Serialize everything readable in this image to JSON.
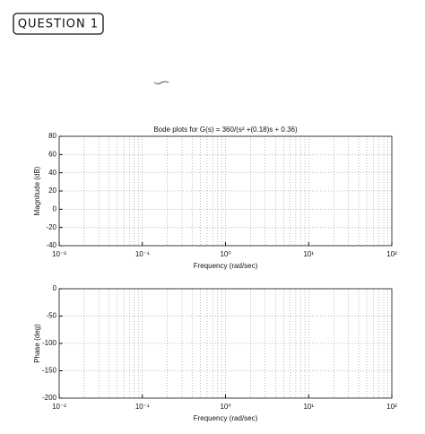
{
  "header": "QUESTION 1",
  "chart_data": [
    {
      "type": "line",
      "title": "Bode plots for G(s) = 360/(s² +(0.18)s + 0.36)",
      "x_label": "Frequency (rad/sec)",
      "y_label": "Magnitude (dB)",
      "xscale": "log",
      "grid": true,
      "xlim": [
        0.01,
        100
      ],
      "xticks": [
        {
          "value": 0.01,
          "label": "10⁻²"
        },
        {
          "value": 0.1,
          "label": "10⁻¹"
        },
        {
          "value": 1,
          "label": "10⁰"
        },
        {
          "value": 10,
          "label": "10¹"
        },
        {
          "value": 100,
          "label": "10²"
        }
      ],
      "ylim": [
        -40,
        80
      ],
      "yticks": [
        -40,
        -20,
        0,
        20,
        40,
        60,
        80
      ]
    },
    {
      "type": "line",
      "x_label": "Frequency (rad/sec)",
      "y_label": "Phase (deg)",
      "xscale": "log",
      "grid": true,
      "xlim": [
        0.01,
        100
      ],
      "xticks": [
        {
          "value": 0.01,
          "label": "10⁻²"
        },
        {
          "value": 0.1,
          "label": "10⁻¹"
        },
        {
          "value": 1,
          "label": "10⁰"
        },
        {
          "value": 10,
          "label": "10¹"
        },
        {
          "value": 100,
          "label": "10²"
        }
      ],
      "ylim": [
        -200,
        0
      ],
      "yticks": [
        -200,
        -150,
        -100,
        -50,
        0
      ]
    }
  ]
}
